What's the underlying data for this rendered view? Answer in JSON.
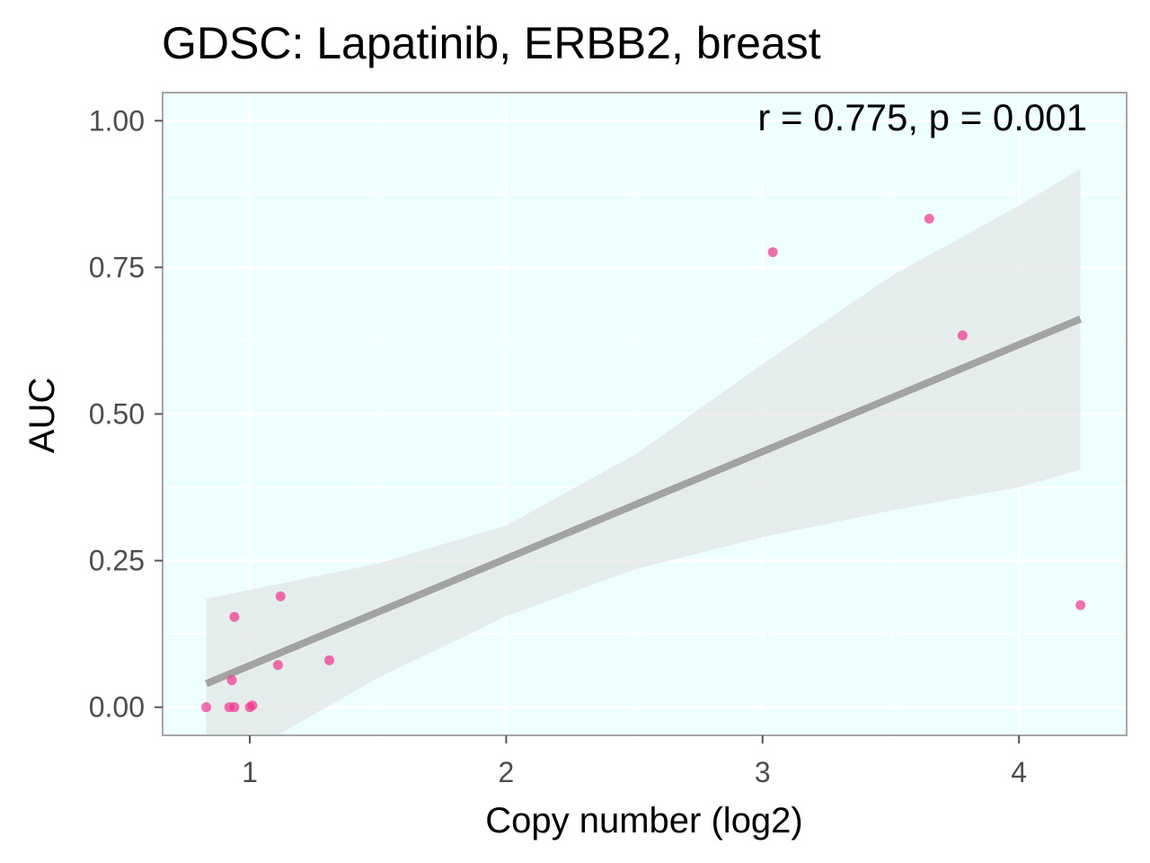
{
  "chart_data": {
    "type": "scatter",
    "title": "GDSC: Lapatinib, ERBB2, breast",
    "xlabel": "Copy number (log2)",
    "ylabel": "AUC",
    "annotation": "r = 0.775, p = 0.001",
    "xlim": [
      0.66,
      4.42
    ],
    "ylim": [
      -0.048,
      1.048
    ],
    "x_ticks": [
      1,
      2,
      3,
      4
    ],
    "x_tick_labels": [
      "1",
      "2",
      "3",
      "4"
    ],
    "y_ticks": [
      0,
      0.25,
      0.5,
      0.75,
      1
    ],
    "y_tick_labels": [
      "0.00",
      "0.25",
      "0.50",
      "0.75",
      "1.00"
    ],
    "grid": true,
    "colors": {
      "panel_background": "#eeffff",
      "grid": "#ffffff",
      "point": "#f0338f",
      "fit_line": "#a3a3a3",
      "confidence_band": "#e0e0e0"
    },
    "points": [
      {
        "x": 0.83,
        "y": 0.0
      },
      {
        "x": 0.92,
        "y": 0.0
      },
      {
        "x": 0.94,
        "y": 0.0
      },
      {
        "x": 0.93,
        "y": 0.046
      },
      {
        "x": 0.94,
        "y": 0.154
      },
      {
        "x": 1.0,
        "y": 0.0
      },
      {
        "x": 1.01,
        "y": 0.003
      },
      {
        "x": 1.11,
        "y": 0.072
      },
      {
        "x": 1.12,
        "y": 0.189
      },
      {
        "x": 1.31,
        "y": 0.08
      },
      {
        "x": 3.04,
        "y": 0.776
      },
      {
        "x": 3.65,
        "y": 0.833
      },
      {
        "x": 3.78,
        "y": 0.634
      },
      {
        "x": 4.24,
        "y": 0.174
      }
    ],
    "fit_line": {
      "x": [
        0.83,
        4.24
      ],
      "y": [
        0.04,
        0.662
      ]
    },
    "confidence_band": {
      "x": [
        0.83,
        1.0,
        1.5,
        2.0,
        2.5,
        3.0,
        3.5,
        4.0,
        4.24
      ],
      "lower": [
        -0.105,
        -0.075,
        0.05,
        0.155,
        0.235,
        0.29,
        0.335,
        0.375,
        0.405
      ],
      "upper": [
        0.185,
        0.2,
        0.245,
        0.31,
        0.43,
        0.585,
        0.735,
        0.855,
        0.918
      ]
    }
  }
}
